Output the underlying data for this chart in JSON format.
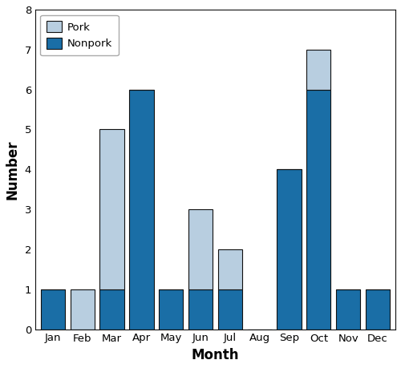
{
  "months": [
    "Jan",
    "Feb",
    "Mar",
    "Apr",
    "May",
    "Jun",
    "Jul",
    "Aug",
    "Sep",
    "Oct",
    "Nov",
    "Dec"
  ],
  "nonpork": [
    1,
    0,
    1,
    6,
    1,
    1,
    1,
    0,
    4,
    6,
    1,
    1
  ],
  "pork": [
    0,
    1,
    4,
    0,
    0,
    2,
    1,
    0,
    0,
    1,
    0,
    0
  ],
  "nonpork_color": "#1a6ea6",
  "pork_color": "#b8cee0",
  "xlabel": "Month",
  "ylabel": "Number",
  "ylim": [
    0,
    8
  ],
  "yticks": [
    0,
    1,
    2,
    3,
    4,
    5,
    6,
    7,
    8
  ],
  "bar_edge_color": "#111111",
  "bar_linewidth": 0.8,
  "legend_labels": [
    "Pork",
    "Nonpork"
  ],
  "legend_colors": [
    "#b8cee0",
    "#1a6ea6"
  ],
  "background_color": "#ffffff"
}
